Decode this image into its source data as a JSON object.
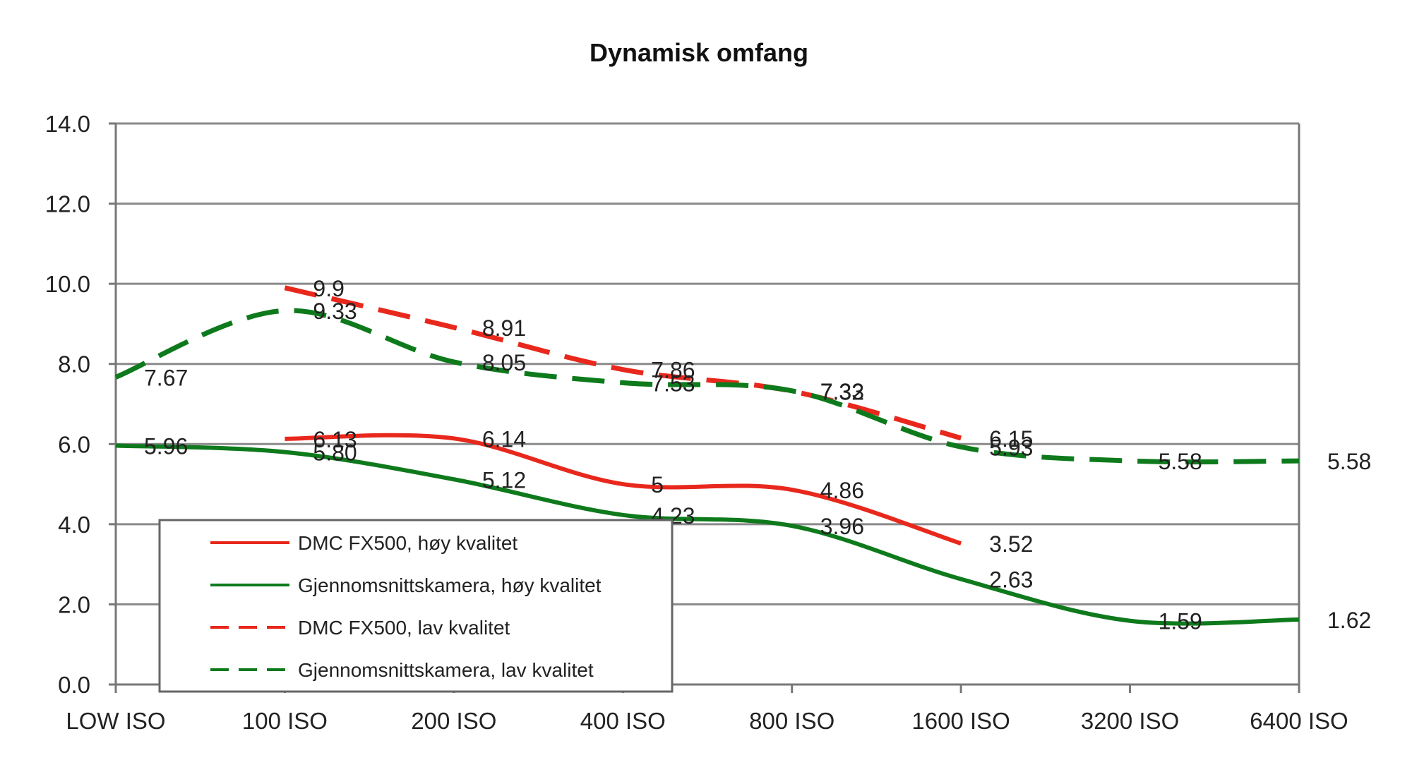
{
  "chart_data": {
    "type": "line",
    "title": "Dynamisk omfang",
    "xlabel": "",
    "ylabel": "",
    "categories": [
      "LOW ISO",
      "100 ISO",
      "200 ISO",
      "400 ISO",
      "800 ISO",
      "1600 ISO",
      "3200 ISO",
      "6400 ISO"
    ],
    "y_ticks": [
      "0.0",
      "2.0",
      "4.0",
      "6.0",
      "8.0",
      "10.0",
      "12.0",
      "14.0"
    ],
    "ylim": [
      0,
      14
    ],
    "grid": true,
    "legend_position": "bottom-left",
    "series": [
      {
        "name": "DMC FX500, høy kvalitet",
        "style": "solid",
        "color": "#e8281c",
        "values": [
          null,
          6.13,
          6.14,
          5,
          4.86,
          3.52,
          null,
          null
        ],
        "labels": [
          "",
          "6.13",
          "6.14",
          "5",
          "4.86",
          "3.52",
          "",
          ""
        ]
      },
      {
        "name": "Gjennomsnittskamera, høy kvalitet",
        "style": "solid",
        "color": "#0e7a1c",
        "values": [
          5.96,
          5.8,
          5.12,
          4.23,
          3.96,
          2.63,
          1.59,
          1.62
        ],
        "labels": [
          "5.96",
          "5.80",
          "5.12",
          "4.23",
          "3.96",
          "2.63",
          "1.59",
          "1.62"
        ]
      },
      {
        "name": "DMC FX500, lav kvalitet",
        "style": "dashed",
        "color": "#e8281c",
        "values": [
          null,
          9.9,
          8.91,
          7.86,
          7.32,
          6.15,
          null,
          null
        ],
        "labels": [
          "",
          "9.9",
          "8.91",
          "7.86",
          "7.32",
          "6.15",
          "",
          ""
        ]
      },
      {
        "name": "Gjennomsnittskamera, lav kvalitet",
        "style": "dashed",
        "color": "#0e7a1c",
        "values": [
          7.67,
          9.33,
          8.05,
          7.53,
          7.33,
          5.93,
          5.58,
          5.58
        ],
        "labels": [
          "7.67",
          "9.33",
          "8.05",
          "7.53",
          "7.33",
          "5.93",
          "5.58",
          "5.58"
        ]
      }
    ]
  }
}
